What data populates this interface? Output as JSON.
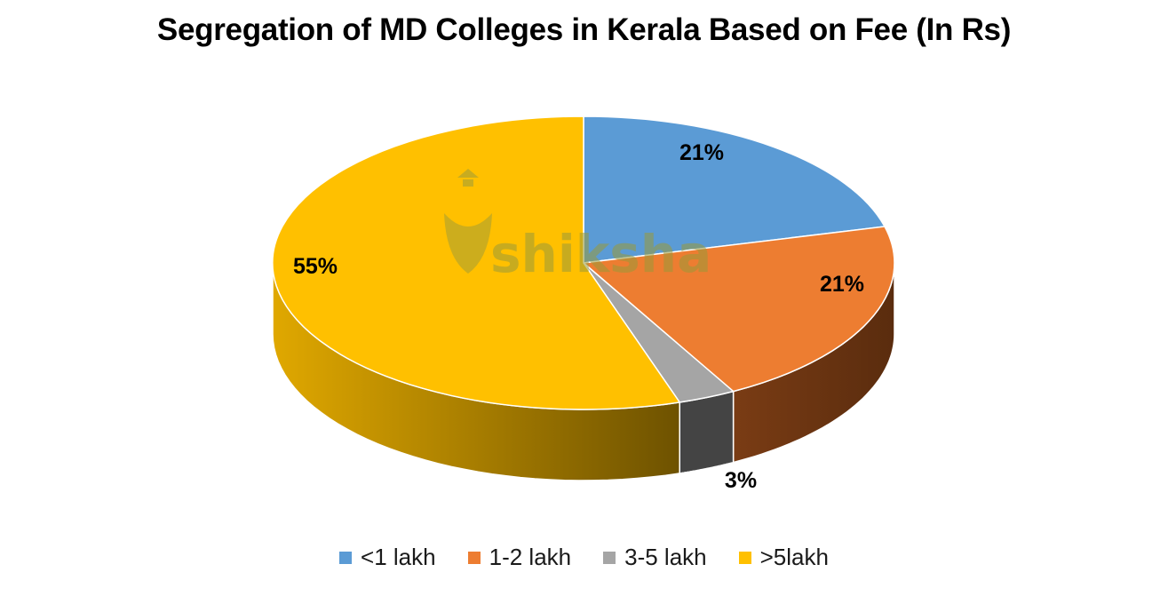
{
  "chart_data": {
    "type": "pie",
    "style": "3d",
    "title": "Segregation of MD Colleges in Kerala Based on Fee (In Rs)",
    "categories": [
      "<1 lakh",
      "1-2 lakh",
      "3-5 lakh",
      ">5lakh"
    ],
    "values": [
      21,
      21,
      3,
      55
    ],
    "labels": [
      "21%",
      "21%",
      "3%",
      "55%"
    ],
    "colors": [
      "#5b9bd5",
      "#ed7d31",
      "#a5a5a5",
      "#ffc000"
    ],
    "legend_position": "bottom",
    "watermark": "shiksha"
  },
  "legend": [
    {
      "label": "<1 lakh",
      "color": "#5b9bd5"
    },
    {
      "label": "1-2 lakh",
      "color": "#ed7d31"
    },
    {
      "label": "3-5 lakh",
      "color": "#a5a5a5"
    },
    {
      "label": ">5lakh",
      "color": "#ffc000"
    }
  ]
}
